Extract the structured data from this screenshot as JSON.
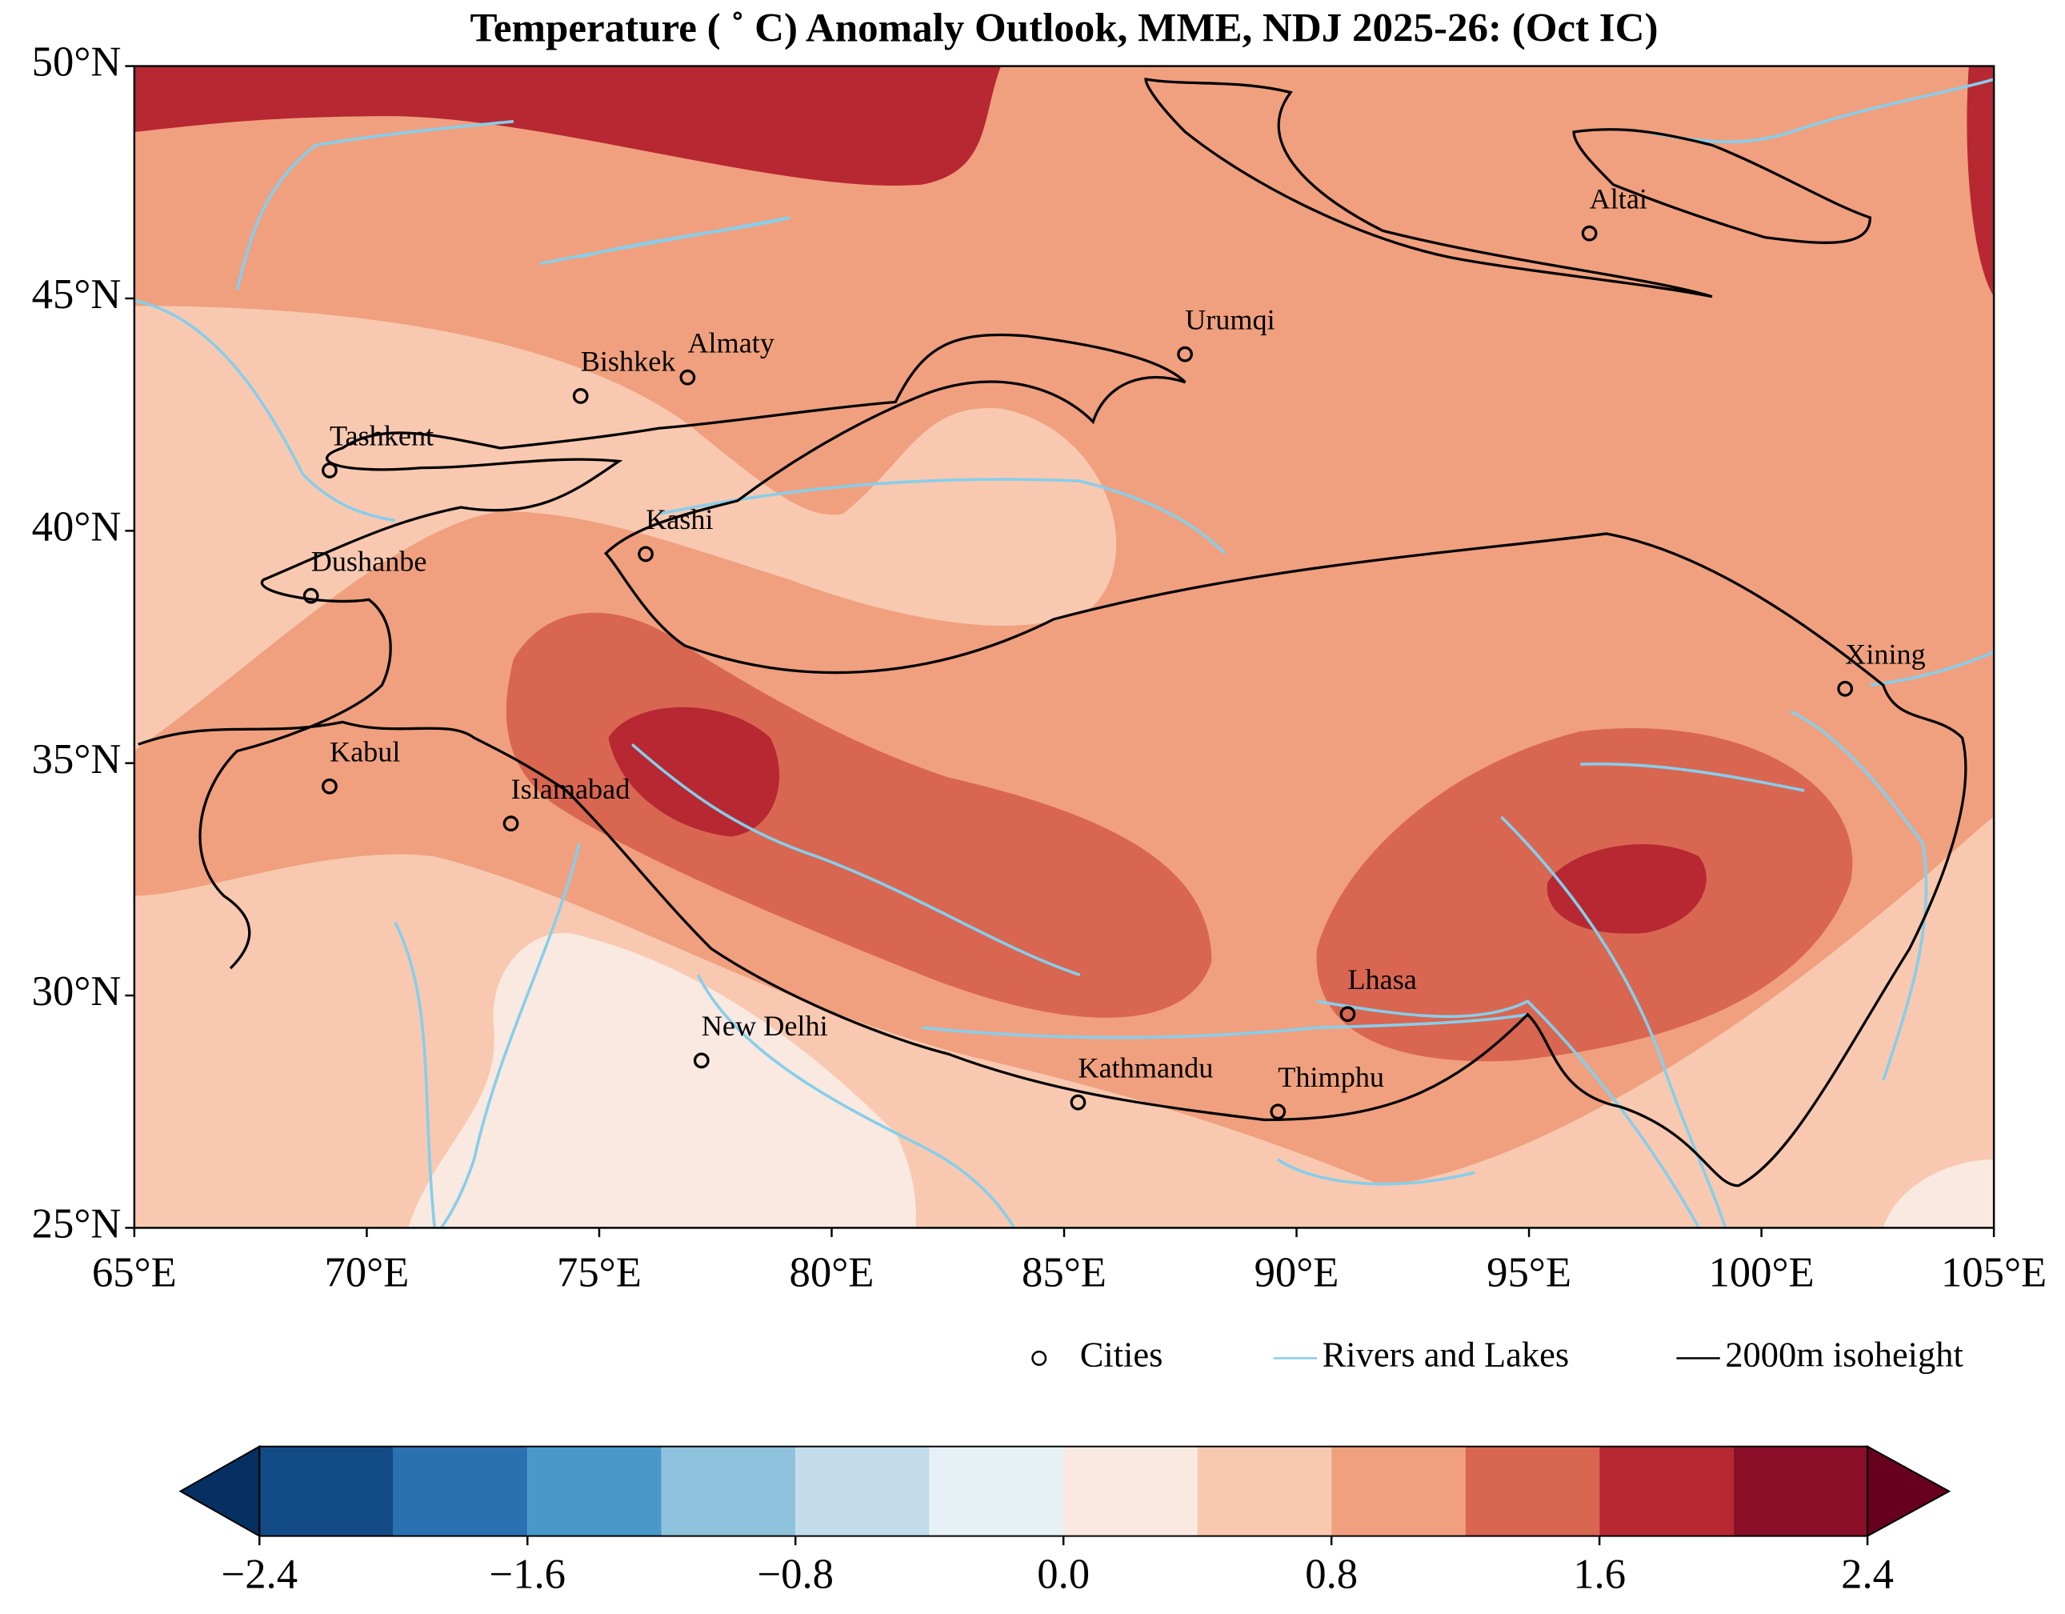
{
  "title": "Temperature ( ˚ C) Anomaly Outlook, MME, NDJ  2025-26:  (Oct IC)",
  "map": {
    "xlim": [
      65,
      105
    ],
    "ylim": [
      25,
      50
    ],
    "xticks": [
      {
        "value": 65,
        "label": "65°E"
      },
      {
        "value": 70,
        "label": "70°E"
      },
      {
        "value": 75,
        "label": "75°E"
      },
      {
        "value": 80,
        "label": "80°E"
      },
      {
        "value": 85,
        "label": "85°E"
      },
      {
        "value": 90,
        "label": "90°E"
      },
      {
        "value": 95,
        "label": "95°E"
      },
      {
        "value": 100,
        "label": "100°E"
      },
      {
        "value": 105,
        "label": "105°E"
      }
    ],
    "yticks": [
      {
        "value": 25,
        "label": "25°N"
      },
      {
        "value": 30,
        "label": "30°N"
      },
      {
        "value": 35,
        "label": "35°N"
      },
      {
        "value": 40,
        "label": "40°N"
      },
      {
        "value": 45,
        "label": "45°N"
      },
      {
        "value": 50,
        "label": "50°N"
      }
    ]
  },
  "cities": [
    {
      "name": "Altai",
      "lon": 96.3,
      "lat": 46.4
    },
    {
      "name": "Urumqi",
      "lon": 87.6,
      "lat": 43.8
    },
    {
      "name": "Almaty",
      "lon": 76.9,
      "lat": 43.3
    },
    {
      "name": "Bishkek",
      "lon": 74.6,
      "lat": 42.9
    },
    {
      "name": "Tashkent",
      "lon": 69.2,
      "lat": 41.3
    },
    {
      "name": "Kashi",
      "lon": 76.0,
      "lat": 39.5
    },
    {
      "name": "Dushanbe",
      "lon": 68.8,
      "lat": 38.6
    },
    {
      "name": "Xining",
      "lon": 101.8,
      "lat": 36.6
    },
    {
      "name": "Kabul",
      "lon": 69.2,
      "lat": 34.5
    },
    {
      "name": "Islamabad",
      "lon": 73.1,
      "lat": 33.7
    },
    {
      "name": "Lhasa",
      "lon": 91.1,
      "lat": 29.6
    },
    {
      "name": "New Delhi",
      "lon": 77.2,
      "lat": 28.6
    },
    {
      "name": "Kathmandu",
      "lon": 85.3,
      "lat": 27.7
    },
    {
      "name": "Thimphu",
      "lon": 89.6,
      "lat": 27.5
    }
  ],
  "legend": {
    "cities": "Cities",
    "rivers": "Rivers and Lakes",
    "isoheight": "2000m isoheight",
    "rivers_color": "#87ceeb",
    "isoheight_color": "#000000"
  },
  "colorbar": {
    "bounds": [
      -2.4,
      -2.0,
      -1.6,
      -1.2,
      -0.8,
      -0.4,
      0,
      0.4,
      0.8,
      1.2,
      1.6,
      2.0,
      2.4
    ],
    "colors": [
      "#134b87",
      "#2a71b2",
      "#4a98c9",
      "#8fc2dd",
      "#c3dcec",
      "#e7f0f4",
      "#f9e9e0",
      "#f8c9b0",
      "#f0a07e",
      "#d96651",
      "#b72832",
      "#8a0e26"
    ],
    "under_color": "#053061",
    "over_color": "#67001f",
    "ticks": [
      {
        "value": -2.4,
        "label": "−2.4"
      },
      {
        "value": -1.6,
        "label": "−1.6"
      },
      {
        "value": -0.8,
        "label": "−0.8"
      },
      {
        "value": 0,
        "label": "0.0"
      },
      0.8,
      1.6,
      2.4
    ]
  }
}
